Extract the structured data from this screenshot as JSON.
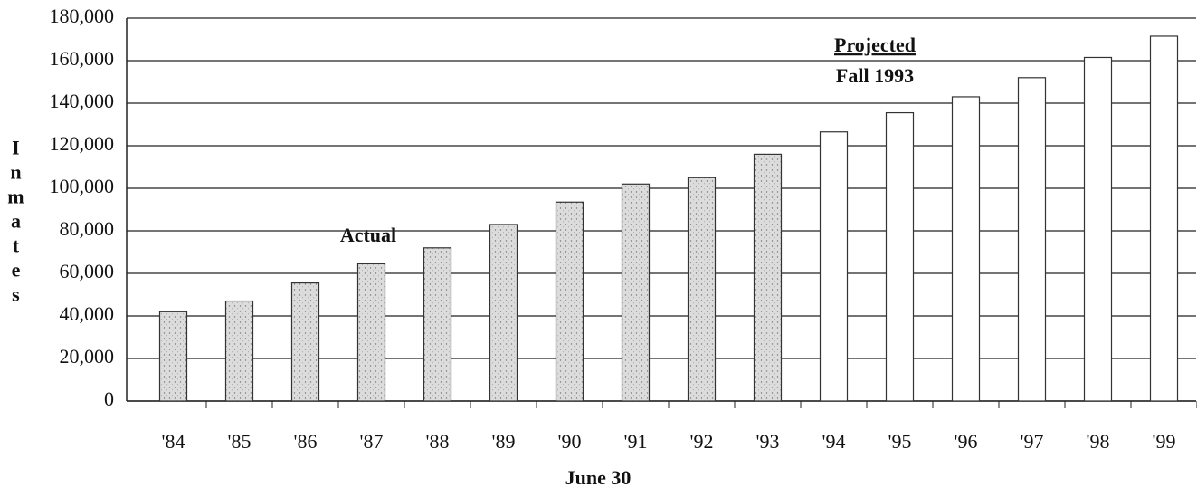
{
  "chart_data": {
    "type": "bar",
    "xlabel": "June 30",
    "ylabel": "Inmates",
    "annotations": [
      "Actual",
      "Projected",
      "Fall 1993"
    ],
    "categories": [
      "'84",
      "'85",
      "'86",
      "'87",
      "'88",
      "'89",
      "'90",
      "'91",
      "'92",
      "'93",
      "'94",
      "'95",
      "'96",
      "'97",
      "'98",
      "'99"
    ],
    "series": [
      {
        "color": "#d9d9d9",
        "values": [
          42000,
          47000,
          55500,
          64500,
          72000,
          83000,
          93500,
          102000,
          105000,
          116000,
          null,
          null,
          null,
          null,
          null,
          null
        ]
      },
      {
        "color": "#ffffff",
        "values": [
          null,
          null,
          null,
          null,
          null,
          null,
          null,
          null,
          null,
          null,
          126500,
          135500,
          143000,
          152000,
          161500,
          171500
        ]
      }
    ],
    "ylim": [
      0,
      180000
    ],
    "yticks": [
      0,
      {
        "value": 20000,
        "label": "20,000"
      },
      {
        "value": 40000,
        "label": "40,000"
      },
      {
        "value": 60000,
        "label": "60,000"
      },
      {
        "value": 80000,
        "label": "80,000"
      },
      {
        "value": 100000,
        "label": "100,000"
      },
      {
        "value": 120000,
        "label": "120,000"
      },
      {
        "value": 140000,
        "label": "140,000"
      },
      {
        "value": 160000,
        "label": "160,000"
      },
      {
        "value": 180000,
        "label": "180,000"
      }
    ],
    "grid": true
  }
}
